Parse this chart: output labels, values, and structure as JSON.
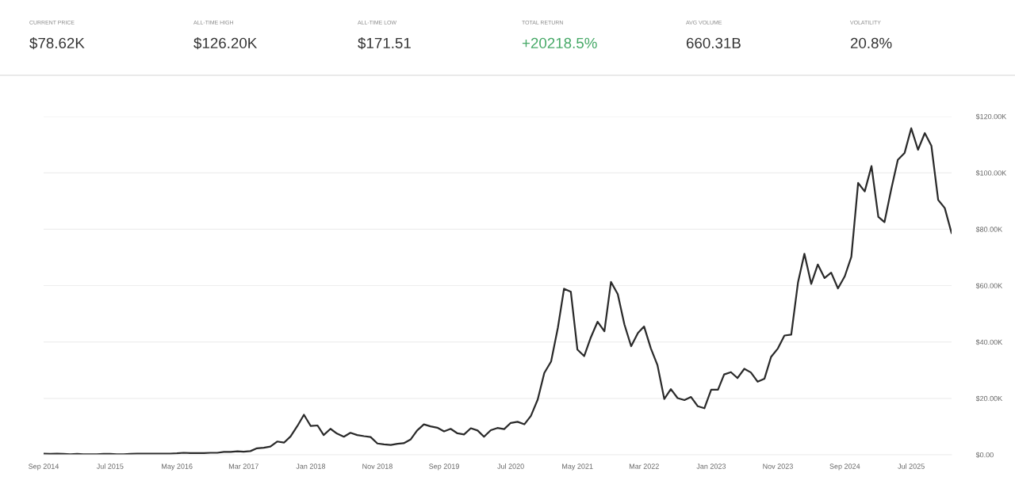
{
  "chart_data": {
    "type": "line",
    "annotations": [
      "CURRENT PRICE",
      "$78.62K",
      "ALL-TIME HIGH",
      "$126.20K",
      "ALL-TIME LOW",
      "$171.51",
      "TOTAL RETURN",
      "+20218.5%",
      "AVG VOLUME",
      "660.31B",
      "VOLATILITY",
      "20.8%"
    ],
    "x": [
      "2014-09",
      "2014-10",
      "2014-11",
      "2014-12",
      "2015-01",
      "2015-02",
      "2015-03",
      "2015-04",
      "2015-05",
      "2015-06",
      "2015-07",
      "2015-08",
      "2015-09",
      "2015-10",
      "2015-11",
      "2015-12",
      "2016-01",
      "2016-02",
      "2016-03",
      "2016-04",
      "2016-05",
      "2016-06",
      "2016-07",
      "2016-08",
      "2016-09",
      "2016-10",
      "2016-11",
      "2016-12",
      "2017-01",
      "2017-02",
      "2017-03",
      "2017-04",
      "2017-05",
      "2017-06",
      "2017-07",
      "2017-08",
      "2017-09",
      "2017-10",
      "2017-11",
      "2017-12",
      "2018-01",
      "2018-02",
      "2018-03",
      "2018-04",
      "2018-05",
      "2018-06",
      "2018-07",
      "2018-08",
      "2018-09",
      "2018-10",
      "2018-11",
      "2018-12",
      "2019-01",
      "2019-02",
      "2019-03",
      "2019-04",
      "2019-05",
      "2019-06",
      "2019-07",
      "2019-08",
      "2019-09",
      "2019-10",
      "2019-11",
      "2019-12",
      "2020-01",
      "2020-02",
      "2020-03",
      "2020-04",
      "2020-05",
      "2020-06",
      "2020-07",
      "2020-08",
      "2020-09",
      "2020-10",
      "2020-11",
      "2020-12",
      "2021-01",
      "2021-02",
      "2021-03",
      "2021-04",
      "2021-05",
      "2021-06",
      "2021-07",
      "2021-08",
      "2021-09",
      "2021-10",
      "2021-11",
      "2021-12",
      "2022-01",
      "2022-02",
      "2022-03",
      "2022-04",
      "2022-05",
      "2022-06",
      "2022-07",
      "2022-08",
      "2022-09",
      "2022-10",
      "2022-11",
      "2022-12",
      "2023-01",
      "2023-02",
      "2023-03",
      "2023-04",
      "2023-05",
      "2023-06",
      "2023-07",
      "2023-08",
      "2023-09",
      "2023-10",
      "2023-11",
      "2023-12",
      "2024-01",
      "2024-02",
      "2024-03",
      "2024-04",
      "2024-05",
      "2024-06",
      "2024-07",
      "2024-08",
      "2024-09",
      "2024-10",
      "2024-11",
      "2024-12",
      "2025-01",
      "2025-02",
      "2025-03",
      "2025-04",
      "2025-05",
      "2025-06",
      "2025-07",
      "2025-08",
      "2025-09",
      "2025-10",
      "2025-11",
      "2025-12",
      "2026-01"
    ],
    "series": [
      {
        "color": "#2a2a2a",
        "values": [
          0.4,
          0.3,
          0.4,
          0.3,
          0.2,
          0.3,
          0.2,
          0.2,
          0.2,
          0.3,
          0.3,
          0.2,
          0.2,
          0.3,
          0.4,
          0.4,
          0.4,
          0.4,
          0.4,
          0.4,
          0.5,
          0.7,
          0.6,
          0.6,
          0.6,
          0.7,
          0.7,
          1.0,
          1.0,
          1.2,
          1.1,
          1.3,
          2.3,
          2.5,
          2.9,
          4.7,
          4.3,
          6.5,
          10.2,
          14.2,
          10.2,
          10.4,
          7.0,
          9.2,
          7.5,
          6.4,
          7.8,
          7.0,
          6.6,
          6.3,
          4.0,
          3.7,
          3.5,
          3.9,
          4.1,
          5.4,
          8.6,
          10.8,
          10.1,
          9.6,
          8.3,
          9.2,
          7.6,
          7.2,
          9.4,
          8.6,
          6.4,
          8.7,
          9.5,
          9.1,
          11.3,
          11.7,
          10.8,
          13.8,
          19.6,
          29.0,
          33.1,
          45.1,
          58.9,
          57.8,
          37.3,
          35.0,
          41.6,
          47.2,
          43.8,
          61.3,
          57.0,
          46.3,
          38.5,
          43.2,
          45.5,
          37.7,
          31.8,
          19.8,
          23.3,
          20.1,
          19.4,
          20.5,
          17.2,
          16.5,
          23.1,
          23.1,
          28.5,
          29.3,
          27.2,
          30.5,
          29.2,
          25.9,
          27.0,
          34.7,
          37.7,
          42.3,
          42.6,
          61.2,
          71.3,
          60.6,
          67.5,
          62.7,
          64.6,
          59.0,
          63.3,
          70.2,
          96.4,
          93.4,
          102.4,
          84.4,
          82.5,
          94.2,
          104.6,
          107.1,
          115.8,
          108.2,
          114.1,
          109.6,
          90.4,
          87.5,
          78.6
        ]
      }
    ],
    "xlim": [
      "2014-09",
      "2026-01"
    ],
    "xticks": [
      {
        "value": "2014-09",
        "label": "Sep 2014"
      },
      {
        "value": "2015-07",
        "label": "Jul 2015"
      },
      {
        "value": "2016-05",
        "label": "May 2016"
      },
      {
        "value": "2017-03",
        "label": "Mar 2017"
      },
      {
        "value": "2018-01",
        "label": "Jan 2018"
      },
      {
        "value": "2018-11",
        "label": "Nov 2018"
      },
      {
        "value": "2019-09",
        "label": "Sep 2019"
      },
      {
        "value": "2020-07",
        "label": "Jul 2020"
      },
      {
        "value": "2021-05",
        "label": "May 2021"
      },
      {
        "value": "2022-03",
        "label": "Mar 2022"
      },
      {
        "value": "2023-01",
        "label": "Jan 2023"
      },
      {
        "value": "2023-11",
        "label": "Nov 2023"
      },
      {
        "value": "2024-09",
        "label": "Sep 2024"
      },
      {
        "value": "2025-07",
        "label": "Jul 2025"
      }
    ],
    "ylim": [
      0,
      120
    ],
    "yticks": [
      {
        "value": 0,
        "label": "$0.00"
      },
      {
        "value": 20,
        "label": "$20.00K"
      },
      {
        "value": 40,
        "label": "$40.00K"
      },
      {
        "value": 60,
        "label": "$60.00K"
      },
      {
        "value": 80,
        "label": "$80.00K"
      },
      {
        "value": 100,
        "label": "$100.00K"
      },
      {
        "value": 120,
        "label": "$120.00K"
      }
    ],
    "grid": "y",
    "line_style": "solid"
  }
}
